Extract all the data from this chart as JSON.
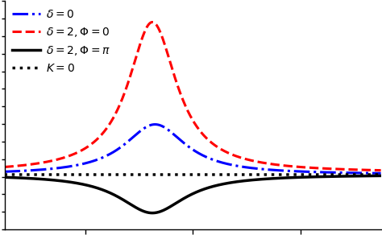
{
  "x_range": [
    -3.5,
    3.5
  ],
  "n_points": 2000,
  "curves": [
    {
      "label": "$\\delta=0$",
      "color": "blue",
      "linestyle": "-.",
      "linewidth": 2.2,
      "delta": 0.0,
      "phi": 0.0,
      "K": 1.0
    },
    {
      "label": "$\\delta=2,\\Phi=0$",
      "color": "red",
      "linestyle": "--",
      "linewidth": 2.2,
      "delta": 2.0,
      "phi": 0.0,
      "K": 1.0
    },
    {
      "label": "$\\delta=2,\\Phi=\\pi$",
      "color": "black",
      "linestyle": "-",
      "linewidth": 2.5,
      "delta": 2.0,
      "phi": 3.14159265,
      "K": 1.0
    },
    {
      "label": "$K=0$",
      "color": "black",
      "linestyle": ":",
      "linewidth": 2.5,
      "delta": 0.0,
      "phi": 0.0,
      "K": 0.0
    }
  ],
  "legend_loc": "upper left",
  "legend_fontsize": 10,
  "background_color": "#ffffff",
  "ylim": [
    -0.55,
    1.95
  ],
  "xlim": [
    -3.5,
    3.5
  ],
  "n_yticks": 14,
  "x_tick_positions": [
    -2.0,
    0.0,
    2.0
  ]
}
